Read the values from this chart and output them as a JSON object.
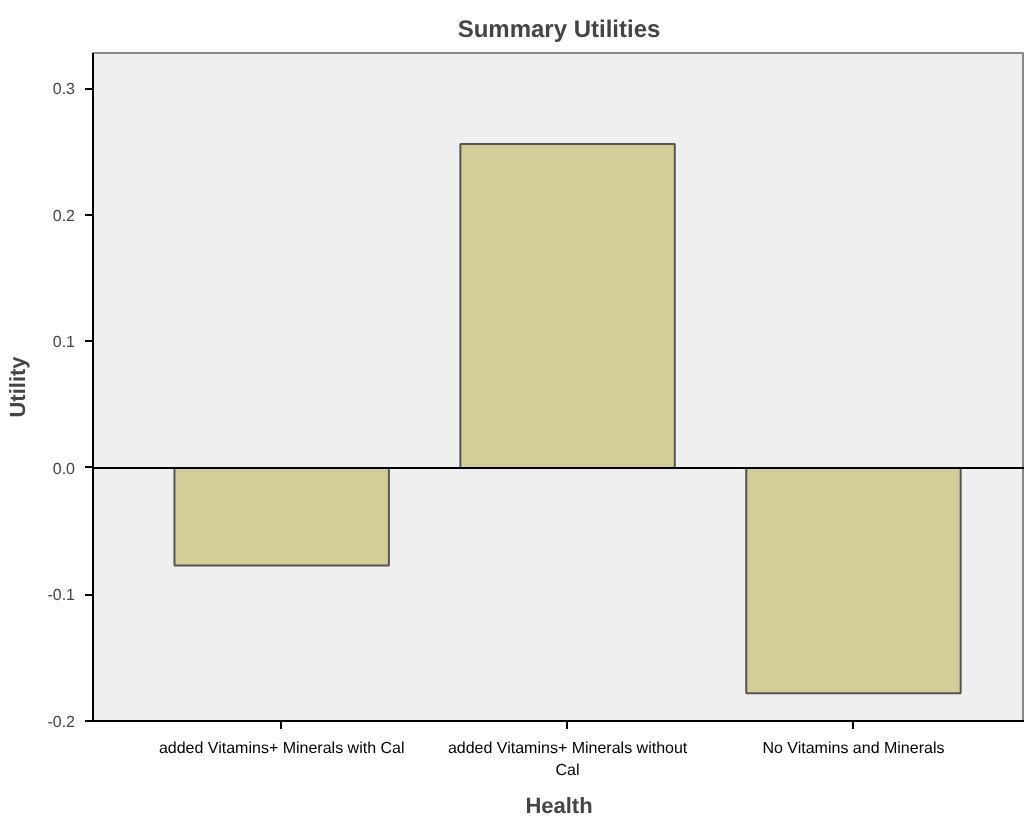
{
  "chart_data": {
    "type": "bar",
    "title": "Summary Utilities",
    "xlabel": "Health",
    "ylabel": "Utility",
    "categories": [
      "added Vitamins+ Minerals with Cal",
      "added Vitamins+ Minerals without Cal",
      "No Vitamins and Minerals"
    ],
    "values": [
      -0.077,
      0.256,
      -0.178
    ],
    "color": "#d3ce98",
    "ylim": [
      -0.2,
      0.328
    ],
    "yticks": [
      {
        "value": -0.2,
        "label": "-0.2"
      },
      {
        "value": -0.1,
        "label": "-0.1"
      },
      {
        "value": 0,
        "label": "0.0"
      },
      {
        "value": 0.1,
        "label": "0.1"
      },
      {
        "value": 0.2,
        "label": "0.2"
      },
      {
        "value": 0.3,
        "label": "0.3"
      }
    ],
    "ref_lines": [
      {
        "axis": "y",
        "value": 0,
        "color": "#000000"
      }
    ],
    "grid": false
  }
}
